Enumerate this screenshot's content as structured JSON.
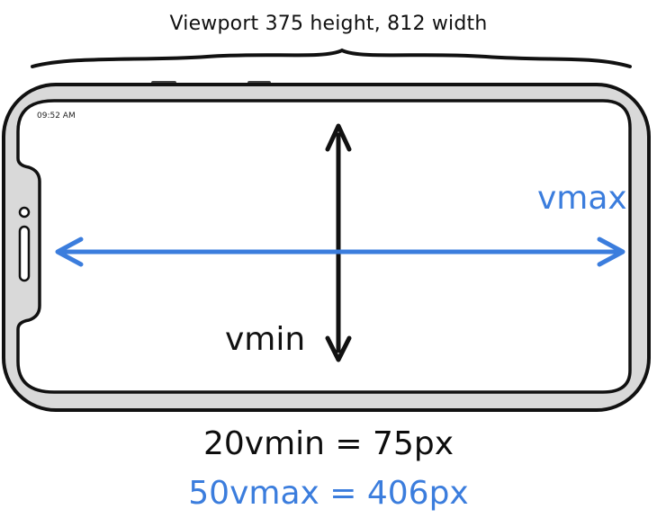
{
  "title": "Viewport 375 height, 812 width",
  "status_time": "09:52 AM",
  "labels": {
    "vmax": "vmax",
    "vmin": "vmin"
  },
  "equations": {
    "vmin": "20vmin = 75px",
    "vmax": "50vmax = 406px"
  },
  "colors": {
    "vmax_accent": "#3b7ddd",
    "ink": "#111111",
    "device_frame": "#d9d9d9"
  }
}
